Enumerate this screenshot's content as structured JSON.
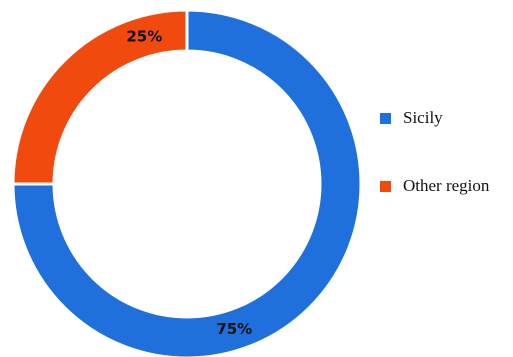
{
  "chart_data": {
    "type": "pie",
    "donut": true,
    "title": "",
    "legend_position": "right",
    "slices": [
      {
        "label": "Sicily",
        "value": 75,
        "value_label": "75%",
        "color": "#1f6fdc"
      },
      {
        "label": "Other region",
        "value": 25,
        "value_label": "25%",
        "color": "#f04a0f"
      }
    ],
    "start": "12 o'clock",
    "direction": "clockwise"
  }
}
